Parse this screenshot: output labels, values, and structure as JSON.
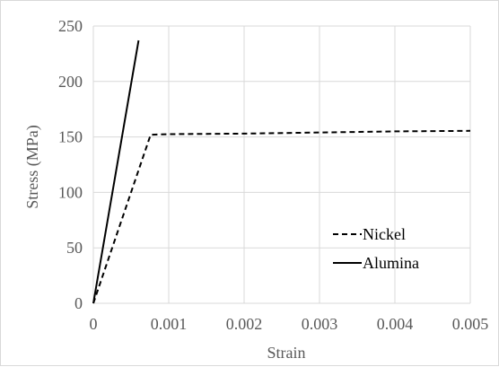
{
  "chart_data": {
    "type": "line",
    "title": "",
    "xlabel": "Strain",
    "ylabel": "Stress (MPa)",
    "xlim": [
      0,
      0.005
    ],
    "ylim": [
      0,
      250
    ],
    "x_ticks": [
      "0",
      "0.001",
      "0.002",
      "0.003",
      "0.004",
      "0.005"
    ],
    "y_ticks": [
      "0",
      "50",
      "100",
      "150",
      "200",
      "250"
    ],
    "grid": true,
    "legend_position": "right",
    "series": [
      {
        "name": "Nickel",
        "style": "dashed",
        "color": "#000000",
        "x": [
          0,
          0.00076,
          0.001,
          0.002,
          0.003,
          0.004,
          0.005
        ],
        "y": [
          0,
          152,
          152.5,
          153,
          154,
          155,
          155.5
        ]
      },
      {
        "name": "Alumina",
        "style": "solid",
        "color": "#000000",
        "x": [
          0,
          0.0006
        ],
        "y": [
          0,
          237
        ]
      }
    ]
  }
}
